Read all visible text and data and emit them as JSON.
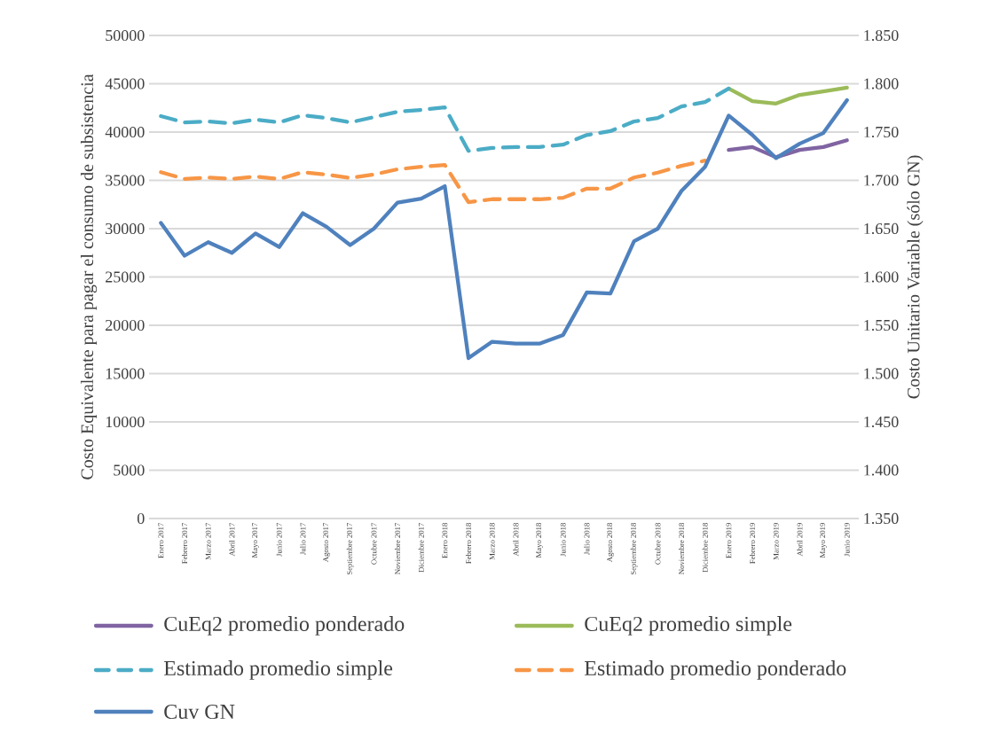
{
  "chart_data": {
    "type": "line",
    "ylabel": "Costo Equivalente para pagar el consumo de subsistencia",
    "y2label": "Costo Unitario Variable (sólo GN)",
    "categories": [
      "Enero 2017",
      "Febrero 2017",
      "Marzo 2017",
      "Abril 2017",
      "Mayo 2017",
      "Junio 2017",
      "Julio 2017",
      "Agosto 2017",
      "Septiembre 2017",
      "Octubre 2017",
      "Noviembre 2017",
      "Diciembre 2017",
      "Enero 2018",
      "Febrero 2018",
      "Marzo 2018",
      "Abril 2018",
      "Mayo 2018",
      "Junio 2018",
      "Julio 2018",
      "Agosto 2018",
      "Septiembre 2018",
      "Octubre 2018",
      "Noviembre 2018",
      "Diciembre 2018",
      "Enero 2019",
      "Febrero 2019",
      "Marzo 2019",
      "Abril 2019",
      "Mayo 2019",
      "Junio 2019"
    ],
    "series": [
      {
        "name": "CuEq2 promedio ponderado",
        "color": "#8064a2",
        "line_style": "solid",
        "values": [
          null,
          null,
          null,
          null,
          null,
          null,
          null,
          null,
          null,
          null,
          null,
          null,
          null,
          null,
          null,
          null,
          null,
          null,
          null,
          null,
          null,
          null,
          null,
          null,
          38150,
          38450,
          37400,
          38150,
          38450,
          39150
        ]
      },
      {
        "name": "CuEq2 promedio simple",
        "color": "#9bbb59",
        "line_style": "solid",
        "values": [
          null,
          null,
          null,
          null,
          null,
          null,
          null,
          null,
          null,
          null,
          null,
          null,
          null,
          null,
          null,
          null,
          null,
          null,
          null,
          null,
          null,
          null,
          null,
          null,
          44500,
          43200,
          42950,
          43850,
          44200,
          44600
        ]
      },
      {
        "name": "Estimado promedio simple",
        "color": "#4bacc6",
        "line_style": "dashed",
        "values": [
          41650,
          41000,
          41100,
          40900,
          41300,
          41000,
          41750,
          41450,
          41000,
          41550,
          42100,
          42300,
          42550,
          38050,
          38350,
          38450,
          38450,
          38700,
          39700,
          40100,
          41100,
          41450,
          42650,
          43100,
          44500,
          null,
          null,
          null,
          null,
          null
        ]
      },
      {
        "name": "Estimado promedio ponderado",
        "color": "#f79646",
        "line_style": "dashed",
        "values": [
          35850,
          35150,
          35300,
          35150,
          35400,
          35150,
          35850,
          35600,
          35250,
          35600,
          36150,
          36400,
          36600,
          32750,
          33050,
          33050,
          33050,
          33200,
          34150,
          34150,
          35300,
          35800,
          36500,
          37050,
          null,
          null,
          null,
          null,
          null,
          null
        ]
      },
      {
        "name": "Cuv GN",
        "color": "#4f81bd",
        "line_style": "solid",
        "axis": "y2",
        "values": [
          1656,
          1622,
          1636,
          1625,
          1645,
          1631,
          1666,
          1652,
          1633,
          1650,
          1677,
          1681,
          1694,
          1516,
          1533,
          1531,
          1531,
          1540,
          1584,
          1583,
          1637,
          1650,
          1689,
          1714,
          1767,
          1747,
          1723,
          1738,
          1749,
          1783
        ]
      }
    ],
    "ylim": [
      0,
      50000
    ],
    "yticks": [
      0,
      5000,
      10000,
      15000,
      20000,
      25000,
      30000,
      35000,
      40000,
      45000,
      50000
    ],
    "y2lim": [
      1350,
      1850
    ],
    "y2ticks": [
      {
        "value": 1350,
        "label": "1.350"
      },
      {
        "value": 1400,
        "label": "1.400"
      },
      {
        "value": 1450,
        "label": "1.450"
      },
      {
        "value": 1500,
        "label": "1.500"
      },
      {
        "value": 1550,
        "label": "1.550"
      },
      {
        "value": 1600,
        "label": "1.600"
      },
      {
        "value": 1650,
        "label": "1.650"
      },
      {
        "value": 1700,
        "label": "1.700"
      },
      {
        "value": 1750,
        "label": "1.750"
      },
      {
        "value": 1800,
        "label": "1.800"
      },
      {
        "value": 1850,
        "label": "1.850"
      }
    ],
    "grid": "y",
    "legend": "bottom"
  }
}
